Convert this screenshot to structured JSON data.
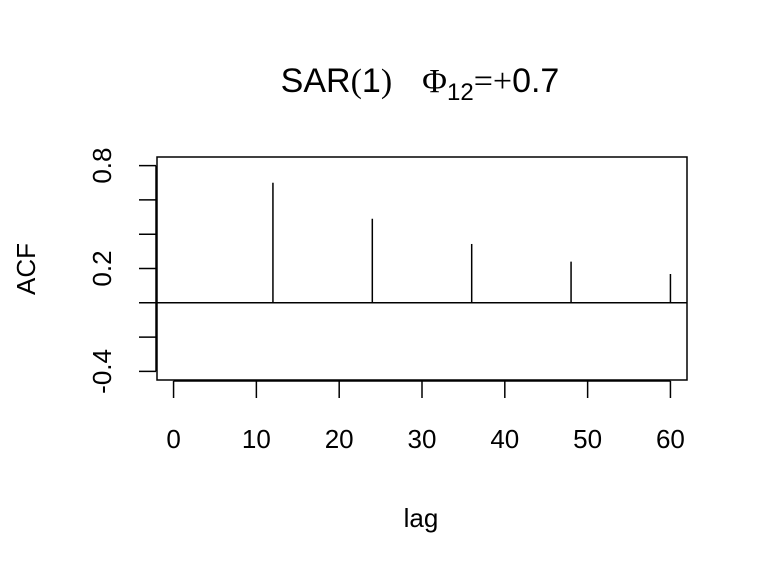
{
  "chart_data": {
    "type": "bar",
    "title": {
      "prefix": "SAR",
      "paren_open": "(",
      "order": "1",
      "paren_close": ")",
      "symbol": "Φ",
      "subscript": "12",
      "operator": "=+",
      "value": "0.7"
    },
    "xlabel": "lag",
    "ylabel": "ACF",
    "xlim": [
      -2,
      62
    ],
    "ylim": [
      -0.45,
      0.85
    ],
    "x_ticks": [
      0,
      10,
      20,
      30,
      40,
      50,
      60
    ],
    "x_tick_labels": [
      "0",
      "10",
      "20",
      "30",
      "40",
      "50",
      "60"
    ],
    "y_ticks": [
      -0.4,
      -0.2,
      0.0,
      0.2,
      0.4,
      0.6,
      0.8
    ],
    "y_tick_labels": [
      "-0.4",
      "",
      "",
      "0.2",
      "",
      "",
      "0.8"
    ],
    "zero_line": 0,
    "grid": false,
    "series": [
      {
        "x": [
          12,
          24,
          36,
          48,
          60
        ],
        "y": [
          0.7,
          0.49,
          0.343,
          0.24,
          0.168
        ]
      }
    ]
  }
}
